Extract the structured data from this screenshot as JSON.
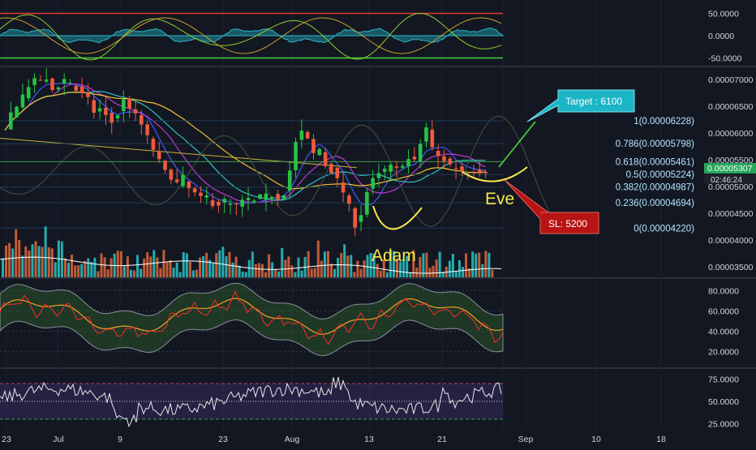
{
  "colors": {
    "background": "#131722",
    "up": "#26c345",
    "down": "#f05a3c",
    "volume_up": "#2bc6c6",
    "volume_down": "#e0683c",
    "fib_text": "#b2e6ff",
    "annotation_yellow": "#f5e94a",
    "target_box": "#1bb5c7",
    "stop_box": "#b81414"
  },
  "chart_data": {
    "type": "candlestick",
    "x_ticks": [
      "23",
      "Jul",
      "9",
      "23",
      "Aug",
      "13",
      "21",
      "Sep",
      "10",
      "18"
    ],
    "price_ticks": [
      "0.00007000",
      "0.00006500",
      "0.00006000",
      "0.00005500",
      "0.00005000",
      "0.00004500",
      "0.00004000",
      "0.00003500"
    ],
    "price_range": [
      3.3e-05,
      7.15e-05
    ],
    "current_price": "0.00005307",
    "countdown": "02:46:24",
    "fib_levels": [
      {
        "label": "1(0.00006228)",
        "value": 6.228e-05
      },
      {
        "label": "0.786(0.00005798)",
        "value": 5.798e-05
      },
      {
        "label": "0.618(0.00005461)",
        "value": 5.461e-05
      },
      {
        "label": "0.5(0.00005224)",
        "value": 5.224e-05
      },
      {
        "label": "0.382(0.00004987)",
        "value": 4.987e-05
      },
      {
        "label": "0.236(0.00004694)",
        "value": 4.694e-05
      },
      {
        "label": "0(0.00004220)",
        "value": 4.22e-05
      }
    ],
    "annotations": {
      "adam": "Adam",
      "eve": "Eve",
      "target": "Target : 6100",
      "stop_loss": "SL: 5200"
    },
    "oscillator_top": {
      "ticks": [
        "50.0000",
        "0.0000",
        "-50.0000"
      ],
      "levels": [
        50,
        0,
        -50
      ]
    },
    "stochastic_panel": {
      "ticks": [
        "80.0000",
        "60.0000",
        "40.0000",
        "20.0000"
      ]
    },
    "rsi_panel": {
      "ticks": [
        "75.0000",
        "50.0000",
        "25.0000"
      ]
    },
    "price_series": [
      6.05,
      6.35,
      6.55,
      6.7,
      6.9,
      6.95,
      7.0,
      6.95,
      6.8,
      6.9,
      7.0,
      6.95,
      6.8,
      6.7,
      6.6,
      6.4,
      6.45,
      6.3,
      6.2,
      6.35,
      6.6,
      6.5,
      6.3,
      6.15,
      5.9,
      5.7,
      5.45,
      5.25,
      5.2,
      5.05,
      5.15,
      4.95,
      4.85,
      4.75,
      4.8,
      4.7,
      4.68,
      4.72,
      4.65,
      4.62,
      4.7,
      4.75,
      4.7,
      4.78,
      4.8,
      4.85,
      4.8,
      4.9,
      5.3,
      5.8,
      6.0,
      5.85,
      5.6,
      5.7,
      5.4,
      5.3,
      5.1,
      4.9,
      4.6,
      4.3,
      4.5,
      4.9,
      5.1,
      5.2,
      5.3,
      5.35,
      5.3,
      5.45,
      5.5,
      5.45,
      5.8,
      6.1,
      5.7,
      5.55,
      5.5,
      5.4,
      5.35,
      5.3,
      5.28,
      5.32,
      5.3,
      5.3
    ]
  }
}
